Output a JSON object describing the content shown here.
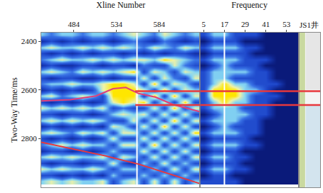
{
  "chart_data": [
    {
      "type": "heatmap",
      "x_label": "Xline Number",
      "y_label": "Two-Way Time/ms",
      "xlim": [
        446,
        632
      ],
      "xticks": [
        484,
        534,
        584
      ],
      "ylim": [
        3000,
        2365
      ],
      "yticks": [
        2400,
        2600,
        2800
      ],
      "zlim": [
        -3,
        3
      ],
      "x": [
        446,
        458,
        470,
        482,
        494,
        506,
        518,
        530,
        542,
        554,
        566,
        578,
        590,
        602,
        614,
        626
      ],
      "y": [
        2375,
        2400,
        2425,
        2450,
        2475,
        2500,
        2525,
        2550,
        2575,
        2600,
        2625,
        2650,
        2675,
        2700,
        2725,
        2750,
        2775,
        2800,
        2825,
        2850,
        2875,
        2900,
        2925,
        2950,
        2975
      ],
      "z": [
        [
          1,
          0,
          1,
          1,
          0,
          1,
          1,
          0,
          1,
          2,
          1,
          0,
          2,
          1,
          0,
          1
        ],
        [
          -2,
          -1,
          -2,
          -1,
          -2,
          -1,
          -1,
          -2,
          -1,
          0,
          -1,
          -2,
          0,
          -1,
          -2,
          -1
        ],
        [
          1,
          2,
          1,
          1,
          2,
          1,
          2,
          1,
          2,
          1,
          0,
          2,
          1,
          0,
          2,
          1
        ],
        [
          -1,
          -2,
          -1,
          -2,
          -1,
          -2,
          -1,
          -1,
          -2,
          -1,
          -2,
          -1,
          -2,
          -1,
          -1,
          -2
        ],
        [
          0,
          1,
          2,
          1,
          1,
          2,
          1,
          2,
          1,
          2,
          2,
          1,
          3,
          2,
          1,
          0
        ],
        [
          -2,
          -1,
          -2,
          -2,
          -1,
          -1,
          -2,
          -1,
          -1,
          -2,
          0,
          -1,
          -1,
          2,
          0,
          -1
        ],
        [
          1,
          2,
          1,
          0,
          2,
          1,
          2,
          1,
          2,
          3,
          -1,
          2,
          1,
          -1,
          2,
          1
        ],
        [
          -1,
          -2,
          -1,
          -1,
          -2,
          -2,
          -1,
          -2,
          -1,
          -1,
          2,
          -1,
          2,
          0,
          -1,
          2
        ],
        [
          0,
          1,
          1,
          2,
          1,
          1,
          2,
          3,
          3,
          2,
          -1,
          3,
          -1,
          2,
          1,
          -1
        ],
        [
          -2,
          -1,
          -2,
          -1,
          -2,
          -1,
          2,
          3,
          3,
          3,
          2,
          -1,
          3,
          -1,
          2,
          1
        ],
        [
          1,
          2,
          0,
          1,
          2,
          1,
          -1,
          3,
          3,
          3,
          -1,
          3,
          -1,
          3,
          -1,
          2
        ],
        [
          -1,
          -2,
          -1,
          -2,
          -1,
          -2,
          -1,
          2,
          3,
          2,
          3,
          -1,
          2,
          -1,
          3,
          -1
        ],
        [
          2,
          1,
          2,
          1,
          2,
          1,
          2,
          -1,
          0,
          -1,
          -1,
          2,
          -1,
          3,
          -1,
          2
        ],
        [
          -1,
          -1,
          -2,
          -1,
          -1,
          -2,
          -1,
          1,
          2,
          1,
          2,
          -1,
          2,
          -1,
          2,
          -1
        ],
        [
          1,
          2,
          1,
          2,
          1,
          2,
          1,
          -1,
          -1,
          2,
          -1,
          2,
          -1,
          3,
          -1,
          2
        ],
        [
          -2,
          -1,
          -2,
          -1,
          -2,
          -1,
          -2,
          2,
          1,
          -1,
          2,
          -1,
          3,
          -1,
          2,
          -1
        ],
        [
          1,
          2,
          1,
          0,
          2,
          1,
          2,
          -1,
          2,
          2,
          -1,
          2,
          -1,
          2,
          -1,
          3
        ],
        [
          -1,
          -2,
          -1,
          -2,
          -1,
          -2,
          -1,
          2,
          -1,
          -1,
          2,
          -1,
          2,
          -1,
          2,
          -1
        ],
        [
          0,
          1,
          2,
          1,
          2,
          1,
          1,
          -1,
          2,
          2,
          -1,
          3,
          -1,
          2,
          -1,
          2
        ],
        [
          -2,
          -1,
          -1,
          -2,
          -1,
          -2,
          -1,
          1,
          -1,
          -1,
          2,
          -1,
          2,
          -1,
          2,
          -1
        ],
        [
          1,
          2,
          1,
          2,
          1,
          1,
          2,
          -1,
          2,
          1,
          -1,
          2,
          -1,
          2,
          -1,
          2
        ],
        [
          -1,
          -2,
          -1,
          -1,
          -2,
          -1,
          -1,
          2,
          -1,
          -2,
          1,
          -1,
          2,
          -1,
          1,
          -1
        ],
        [
          2,
          1,
          2,
          1,
          1,
          2,
          1,
          -1,
          1,
          1,
          -1,
          1,
          -1,
          2,
          -1,
          2
        ],
        [
          -1,
          -1,
          -2,
          -1,
          -2,
          -1,
          -2,
          1,
          -1,
          -1,
          1,
          -1,
          1,
          -1,
          1,
          -1
        ],
        [
          1,
          2,
          1,
          2,
          1,
          1,
          2,
          -1,
          1,
          2,
          -1,
          2,
          -1,
          2,
          -1,
          1
        ]
      ],
      "series": [
        {
          "type": "line",
          "color": "#ffffff",
          "x": [
            558,
            558
          ],
          "y": [
            2365,
            3000
          ]
        },
        {
          "type": "line",
          "color": "#e0407a",
          "x": [
            446,
            480,
            510,
            530,
            545,
            560,
            580,
            600,
            632
          ],
          "y": [
            2645,
            2640,
            2625,
            2595,
            2590,
            2615,
            2630,
            2660,
            2690
          ]
        },
        {
          "type": "line",
          "color": "#e8383d",
          "x": [
            446,
            480,
            520,
            560,
            600,
            632
          ],
          "y": [
            2815,
            2840,
            2870,
            2905,
            2950,
            2985
          ]
        }
      ]
    },
    {
      "type": "heatmap",
      "x_label": "Frequency",
      "tick_labels": "x",
      "xlim": [
        3,
        60
      ],
      "xticks": [
        5,
        17,
        29,
        41,
        53
      ],
      "ylim": [
        3000,
        2365
      ],
      "zlim": [
        0,
        3
      ],
      "x": [
        5,
        11,
        17,
        23,
        29,
        35,
        41,
        47,
        53,
        59
      ],
      "y": [
        2375,
        2400,
        2425,
        2450,
        2475,
        2500,
        2525,
        2550,
        2575,
        2600,
        2625,
        2650,
        2675,
        2700,
        2725,
        2750,
        2775,
        2800,
        2825,
        2850,
        2875,
        2900,
        2925,
        2950,
        2975
      ],
      "z": [
        [
          1,
          2,
          2,
          1,
          1,
          1,
          0,
          0,
          0,
          0
        ],
        [
          0,
          1,
          1,
          1,
          0,
          0,
          0,
          0,
          0,
          0
        ],
        [
          1,
          2,
          2,
          2,
          1,
          1,
          0,
          0,
          0,
          0
        ],
        [
          0,
          1,
          1,
          1,
          1,
          0,
          0,
          0,
          0,
          0
        ],
        [
          1,
          2,
          2,
          2,
          1,
          1,
          1,
          0,
          0,
          0
        ],
        [
          0,
          1,
          2,
          1,
          1,
          1,
          0,
          0,
          0,
          0
        ],
        [
          1,
          2,
          2,
          2,
          2,
          1,
          1,
          0,
          0,
          0
        ],
        [
          1,
          2,
          2,
          1,
          1,
          1,
          1,
          0,
          0,
          0
        ],
        [
          1,
          2,
          3,
          2,
          2,
          1,
          1,
          1,
          0,
          0
        ],
        [
          1,
          3,
          3,
          3,
          2,
          2,
          1,
          0,
          0,
          0
        ],
        [
          1,
          3,
          3,
          3,
          2,
          1,
          1,
          1,
          0,
          0
        ],
        [
          1,
          2,
          3,
          2,
          2,
          1,
          1,
          0,
          0,
          0
        ],
        [
          1,
          2,
          2,
          2,
          1,
          1,
          1,
          0,
          0,
          0
        ],
        [
          0,
          1,
          2,
          2,
          2,
          1,
          1,
          0,
          0,
          0
        ],
        [
          1,
          2,
          2,
          2,
          1,
          1,
          0,
          0,
          0,
          0
        ],
        [
          0,
          1,
          2,
          1,
          1,
          1,
          0,
          0,
          0,
          0
        ],
        [
          1,
          2,
          2,
          2,
          1,
          1,
          0,
          0,
          0,
          0
        ],
        [
          0,
          1,
          1,
          1,
          1,
          0,
          0,
          0,
          0,
          0
        ],
        [
          1,
          2,
          2,
          2,
          1,
          1,
          0,
          0,
          0,
          0
        ],
        [
          0,
          1,
          1,
          1,
          0,
          0,
          0,
          0,
          0,
          0
        ],
        [
          1,
          2,
          2,
          1,
          1,
          0,
          0,
          0,
          0,
          0
        ],
        [
          0,
          1,
          1,
          1,
          0,
          0,
          0,
          0,
          0,
          0
        ],
        [
          1,
          2,
          2,
          1,
          1,
          0,
          0,
          0,
          0,
          0
        ],
        [
          0,
          1,
          1,
          0,
          0,
          0,
          0,
          0,
          0,
          0
        ],
        [
          1,
          1,
          1,
          1,
          0,
          0,
          0,
          0,
          0,
          0
        ]
      ],
      "series": [
        {
          "type": "line",
          "color": "#ffffff",
          "x": [
            17,
            17
          ],
          "y": [
            2365,
            3000
          ]
        }
      ]
    }
  ],
  "well": {
    "label": "JS1井",
    "intervals": [
      {
        "top": 2365,
        "bottom": 2600,
        "color": "#e6e6e6"
      },
      {
        "top": 2600,
        "bottom": 2665,
        "color": "#f4f4f4"
      },
      {
        "top": 2665,
        "bottom": 3000,
        "color": "#d3e4ee"
      }
    ],
    "markers": [
      {
        "time": 2605,
        "color": "#e8383d",
        "start_xline": 556
      },
      {
        "time": 2662,
        "color": "#e8383d",
        "start_xline": 556
      }
    ]
  }
}
